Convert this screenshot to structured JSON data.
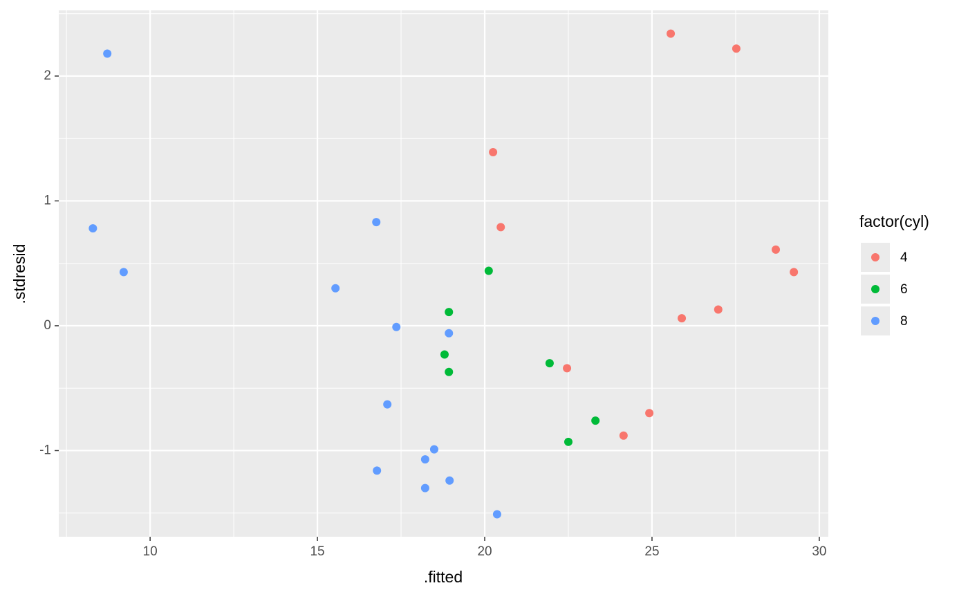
{
  "chart_data": {
    "type": "scatter",
    "xlabel": ".fitted",
    "ylabel": ".stdresid",
    "legend_title": "factor(cyl)",
    "legend": "right",
    "xlim": [
      7.27,
      30.27
    ],
    "ylim": [
      -1.69,
      2.526
    ],
    "xticks": [
      10,
      15,
      20,
      25,
      30
    ],
    "yticks": [
      -1,
      0,
      1,
      2
    ],
    "xminor": [
      7.5,
      12.5,
      17.5,
      22.5,
      27.5
    ],
    "yminor": [
      -1.5,
      -0.5,
      0.5,
      1.5,
      2.5
    ],
    "grid": true,
    "series": [
      {
        "name": "4",
        "color": "#f8766d",
        "x": [
          25.56,
          27.52,
          20.25,
          20.48,
          28.7,
          29.24,
          26.98,
          25.89,
          22.46,
          24.92,
          24.15
        ],
        "values": [
          2.34,
          2.22,
          1.39,
          0.79,
          0.61,
          0.43,
          0.13,
          0.06,
          -0.34,
          -0.7,
          -0.88
        ]
      },
      {
        "name": "6",
        "color": "#00ba38",
        "x": [
          20.12,
          18.93,
          18.8,
          18.93,
          21.94,
          23.31,
          22.5
        ],
        "values": [
          0.44,
          0.11,
          -0.23,
          -0.37,
          -0.3,
          -0.76,
          -0.93
        ]
      },
      {
        "name": "8",
        "color": "#619cff",
        "x": [
          8.72,
          8.29,
          9.21,
          16.76,
          15.54,
          17.36,
          18.93,
          17.09,
          18.49,
          18.22,
          16.78,
          18.22,
          18.95,
          20.37
        ],
        "values": [
          2.18,
          0.78,
          0.43,
          0.83,
          0.3,
          -0.01,
          -0.06,
          -0.63,
          -0.99,
          -1.07,
          -1.16,
          -1.3,
          -1.24,
          -1.51
        ]
      }
    ]
  }
}
